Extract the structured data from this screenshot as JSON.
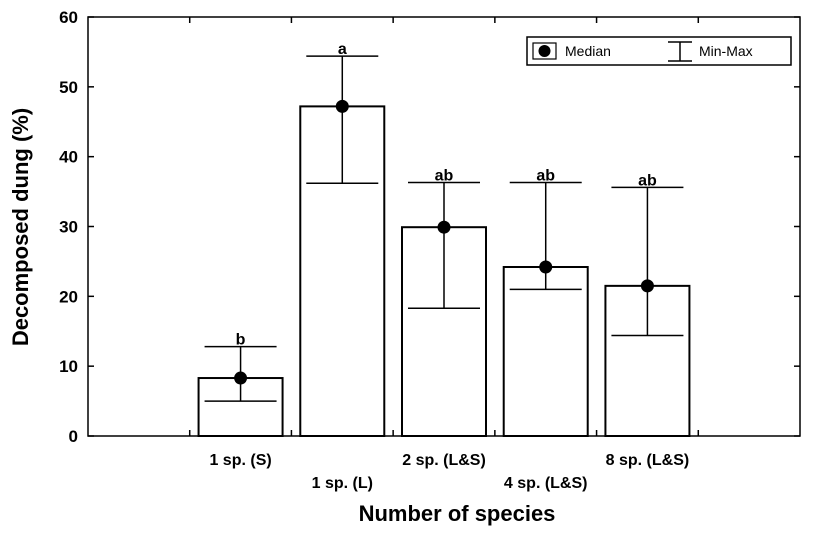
{
  "chart_data": {
    "type": "bar",
    "title": "",
    "xlabel": "Number of species",
    "ylabel": "Decomposed dung (%)",
    "ylim": [
      0,
      60
    ],
    "yticks": [
      "0",
      "10",
      "20",
      "30",
      "40",
      "50",
      "60"
    ],
    "grid": false,
    "categories": [
      "1 sp. (S)",
      "1 sp. (L)",
      "2 sp. (L&S)",
      "4 sp. (L&S)",
      "8 sp. (L&S)"
    ],
    "values": [
      8.3,
      47.2,
      29.9,
      24.2,
      21.5
    ],
    "median": [
      8.3,
      47.2,
      29.9,
      24.2,
      21.5
    ],
    "min": [
      5.0,
      36.2,
      18.3,
      21.0,
      14.4
    ],
    "max": [
      12.8,
      54.4,
      36.3,
      36.3,
      35.6
    ],
    "significance": [
      "b",
      "a",
      "ab",
      "ab",
      "ab"
    ],
    "legend": {
      "position": "top-right",
      "entries": [
        {
          "label": "Median",
          "marker": "dot"
        },
        {
          "label": "Min-Max",
          "marker": "whisker"
        }
      ]
    },
    "colors": {
      "bar_fill": "#ffffff",
      "stroke": "#000000",
      "marker": "#000000"
    }
  }
}
